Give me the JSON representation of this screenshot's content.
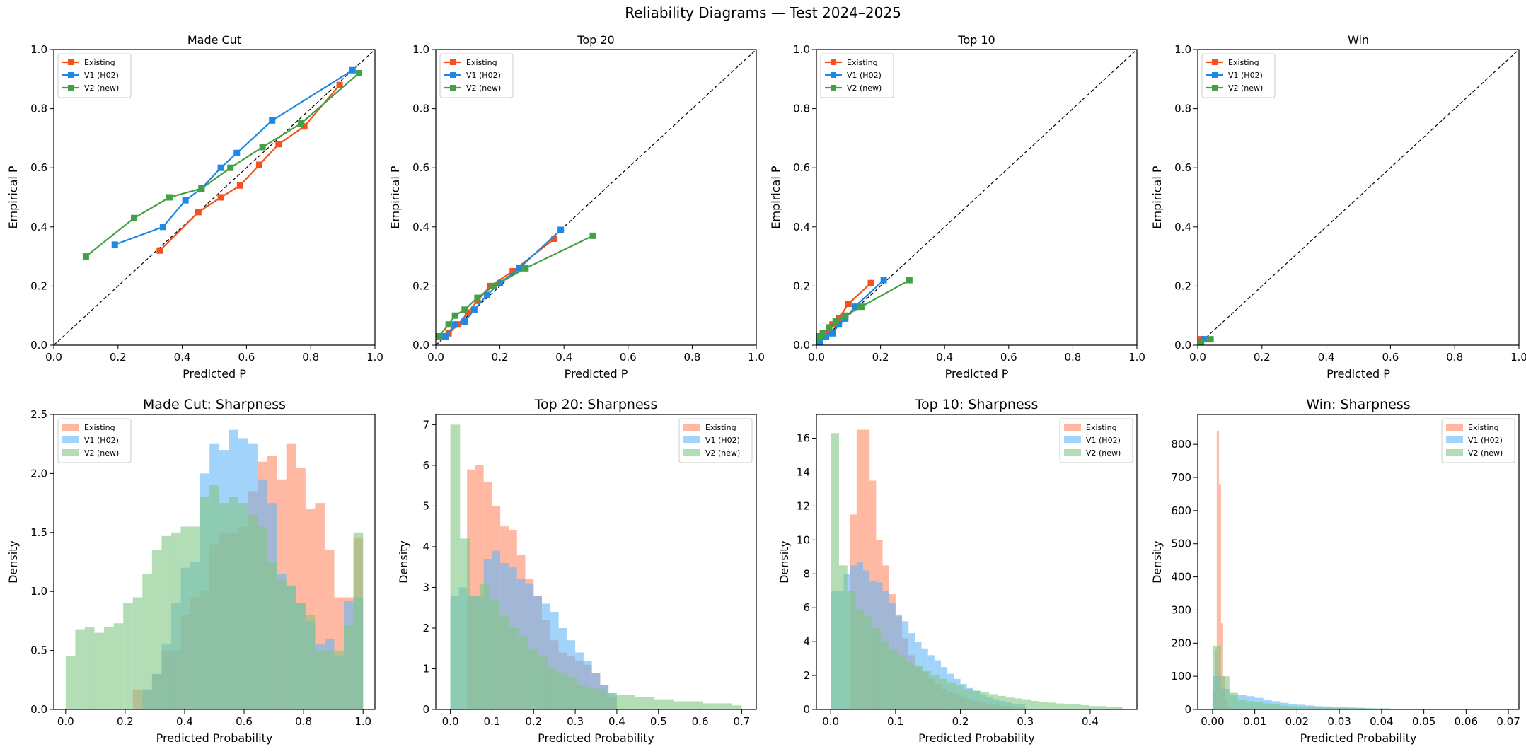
{
  "figure": {
    "title": "Reliability Diagrams — Test 2024–2025"
  },
  "colors": {
    "existing": "#f4511e",
    "v1": "#1e88e5",
    "v2": "#43a047",
    "hist_existing": "#ff8a65",
    "hist_v1": "#64b5f6",
    "hist_v2": "#81c784"
  },
  "chart_data": [
    {
      "type": "line",
      "title": "Made Cut",
      "xlabel": "Predicted P",
      "ylabel": "Empirical P",
      "xlim": [
        0,
        1
      ],
      "ylim": [
        0,
        1
      ],
      "xticks": [
        "0.0",
        "0.2",
        "0.4",
        "0.6",
        "0.8",
        "1.0"
      ],
      "yticks": [
        "0.0",
        "0.2",
        "0.4",
        "0.6",
        "0.8",
        "1.0"
      ],
      "diagonal": true,
      "legend": "top-left",
      "series": [
        {
          "name": "Existing",
          "color": "#f4511e",
          "points": [
            [
              0.33,
              0.32
            ],
            [
              0.45,
              0.45
            ],
            [
              0.52,
              0.5
            ],
            [
              0.58,
              0.54
            ],
            [
              0.64,
              0.61
            ],
            [
              0.7,
              0.68
            ],
            [
              0.78,
              0.74
            ],
            [
              0.89,
              0.88
            ]
          ]
        },
        {
          "name": "V1 (H02)",
          "color": "#1e88e5",
          "points": [
            [
              0.19,
              0.34
            ],
            [
              0.34,
              0.4
            ],
            [
              0.41,
              0.49
            ],
            [
              0.46,
              0.53
            ],
            [
              0.52,
              0.6
            ],
            [
              0.57,
              0.65
            ],
            [
              0.68,
              0.76
            ],
            [
              0.93,
              0.93
            ]
          ]
        },
        {
          "name": "V2 (new)",
          "color": "#43a047",
          "points": [
            [
              0.1,
              0.3
            ],
            [
              0.25,
              0.43
            ],
            [
              0.36,
              0.5
            ],
            [
              0.46,
              0.53
            ],
            [
              0.55,
              0.6
            ],
            [
              0.65,
              0.67
            ],
            [
              0.77,
              0.75
            ],
            [
              0.95,
              0.92
            ]
          ]
        }
      ]
    },
    {
      "type": "line",
      "title": "Top 20",
      "xlabel": "Predicted P",
      "ylabel": "Empirical P",
      "xlim": [
        0,
        1
      ],
      "ylim": [
        0,
        1
      ],
      "xticks": [
        "0.0",
        "0.2",
        "0.4",
        "0.6",
        "0.8",
        "1.0"
      ],
      "yticks": [
        "0.0",
        "0.2",
        "0.4",
        "0.6",
        "0.8",
        "1.0"
      ],
      "diagonal": true,
      "legend": "top-left",
      "series": [
        {
          "name": "Existing",
          "color": "#f4511e",
          "points": [
            [
              0.04,
              0.04
            ],
            [
              0.07,
              0.07
            ],
            [
              0.1,
              0.11
            ],
            [
              0.13,
              0.15
            ],
            [
              0.17,
              0.2
            ],
            [
              0.24,
              0.25
            ],
            [
              0.37,
              0.36
            ]
          ]
        },
        {
          "name": "V1 (H02)",
          "color": "#1e88e5",
          "points": [
            [
              0.03,
              0.03
            ],
            [
              0.06,
              0.07
            ],
            [
              0.09,
              0.08
            ],
            [
              0.12,
              0.12
            ],
            [
              0.16,
              0.17
            ],
            [
              0.2,
              0.21
            ],
            [
              0.26,
              0.26
            ],
            [
              0.39,
              0.39
            ]
          ]
        },
        {
          "name": "V2 (new)",
          "color": "#43a047",
          "points": [
            [
              0.01,
              0.03
            ],
            [
              0.04,
              0.07
            ],
            [
              0.06,
              0.1
            ],
            [
              0.09,
              0.12
            ],
            [
              0.13,
              0.16
            ],
            [
              0.18,
              0.2
            ],
            [
              0.28,
              0.26
            ],
            [
              0.49,
              0.37
            ]
          ]
        }
      ]
    },
    {
      "type": "line",
      "title": "Top 10",
      "xlabel": "Predicted P",
      "ylabel": "Empirical P",
      "xlim": [
        0,
        1
      ],
      "ylim": [
        0,
        1
      ],
      "xticks": [
        "0.0",
        "0.2",
        "0.4",
        "0.6",
        "0.8",
        "1.0"
      ],
      "yticks": [
        "0.0",
        "0.2",
        "0.4",
        "0.6",
        "0.8",
        "1.0"
      ],
      "diagonal": true,
      "legend": "top-left",
      "series": [
        {
          "name": "Existing",
          "color": "#f4511e",
          "points": [
            [
              0.01,
              0.02
            ],
            [
              0.03,
              0.04
            ],
            [
              0.05,
              0.07
            ],
            [
              0.07,
              0.09
            ],
            [
              0.1,
              0.14
            ],
            [
              0.17,
              0.21
            ]
          ]
        },
        {
          "name": "V1 (H02)",
          "color": "#1e88e5",
          "points": [
            [
              0.01,
              0.01
            ],
            [
              0.03,
              0.03
            ],
            [
              0.05,
              0.04
            ],
            [
              0.07,
              0.07
            ],
            [
              0.09,
              0.09
            ],
            [
              0.12,
              0.13
            ],
            [
              0.21,
              0.22
            ]
          ]
        },
        {
          "name": "V2 (new)",
          "color": "#43a047",
          "points": [
            [
              0.0,
              0.02
            ],
            [
              0.01,
              0.03
            ],
            [
              0.02,
              0.04
            ],
            [
              0.04,
              0.06
            ],
            [
              0.06,
              0.08
            ],
            [
              0.09,
              0.1
            ],
            [
              0.14,
              0.13
            ],
            [
              0.29,
              0.22
            ]
          ]
        }
      ]
    },
    {
      "type": "line",
      "title": "Win",
      "xlabel": "Predicted P",
      "ylabel": "Empirical P",
      "xlim": [
        0,
        1
      ],
      "ylim": [
        0,
        1
      ],
      "xticks": [
        "0.0",
        "0.2",
        "0.4",
        "0.6",
        "0.8",
        "1.0"
      ],
      "yticks": [
        "0.0",
        "0.2",
        "0.4",
        "0.6",
        "0.8",
        "1.0"
      ],
      "diagonal": true,
      "legend": "top-left",
      "series": [
        {
          "name": "Existing",
          "color": "#f4511e",
          "points": [
            [
              0.0,
              0.0
            ],
            [
              0.0,
              0.01
            ],
            [
              0.01,
              0.02
            ]
          ]
        },
        {
          "name": "V1 (H02)",
          "color": "#1e88e5",
          "points": [
            [
              0.0,
              0.0
            ],
            [
              0.01,
              0.01
            ],
            [
              0.02,
              0.02
            ]
          ]
        },
        {
          "name": "V2 (new)",
          "color": "#43a047",
          "points": [
            [
              0.0,
              0.0
            ],
            [
              0.01,
              0.01
            ],
            [
              0.04,
              0.02
            ]
          ]
        }
      ]
    },
    {
      "type": "histogram",
      "title": "Made Cut: Sharpness",
      "xlabel": "Predicted Probability",
      "ylabel": "Density",
      "xlim": [
        -0.04,
        1.04
      ],
      "ylim": [
        0,
        2.5
      ],
      "xticks": [
        "0.0",
        "0.2",
        "0.4",
        "0.6",
        "0.8",
        "1.0"
      ],
      "yticks": [
        "0.0",
        "0.5",
        "1.0",
        "1.5",
        "2.0",
        "2.5"
      ],
      "legend": "top-left",
      "series": [
        {
          "name": "Existing",
          "color": "#ff8a65",
          "range": [
            0.0,
            1.0
          ],
          "values": [
            0,
            0,
            0,
            0,
            0,
            0,
            0,
            0.17,
            0.17,
            0.3,
            0.5,
            0.5,
            0.8,
            0.95,
            1.0,
            1.4,
            1.5,
            1.5,
            1.55,
            1.85,
            2.1,
            2.15,
            1.95,
            2.25,
            2.05,
            1.7,
            1.75,
            1.35,
            0.95,
            0.95,
            1.45
          ]
        },
        {
          "name": "V1 (H02)",
          "color": "#64b5f6",
          "range": [
            0.0,
            1.0
          ],
          "values": [
            0,
            0,
            0,
            0,
            0,
            0,
            0,
            0,
            0.17,
            0.3,
            0.55,
            0.9,
            1.2,
            1.25,
            2.0,
            2.25,
            2.2,
            2.37,
            2.3,
            2.25,
            1.95,
            1.75,
            1.15,
            1.05,
            0.9,
            0.75,
            0.55,
            0.6,
            0.45,
            0.92,
            0.95
          ]
        },
        {
          "name": "V2 (new)",
          "color": "#81c784",
          "range": [
            0.0,
            1.0
          ],
          "values": [
            0.45,
            0.68,
            0.7,
            0.65,
            0.7,
            0.73,
            0.9,
            0.95,
            1.15,
            1.35,
            1.47,
            1.5,
            1.55,
            1.55,
            1.8,
            1.9,
            1.75,
            1.8,
            1.75,
            1.65,
            1.55,
            1.25,
            1.1,
            1.05,
            0.9,
            0.8,
            0.5,
            0.5,
            0.5,
            0.72,
            1.5
          ]
        }
      ]
    },
    {
      "type": "histogram",
      "title": "Top 20: Sharpness",
      "xlabel": "Predicted Probability",
      "ylabel": "Density",
      "xlim": [
        -0.035,
        0.735
      ],
      "ylim": [
        0,
        7.25
      ],
      "xticks": [
        "0.0",
        "0.1",
        "0.2",
        "0.3",
        "0.4",
        "0.5",
        "0.6",
        "0.7"
      ],
      "yticks": [
        "0",
        "1",
        "2",
        "3",
        "4",
        "5",
        "6",
        "7"
      ],
      "legend": "top-right",
      "series": [
        {
          "name": "Existing",
          "color": "#ff8a65",
          "range": [
            0.0,
            0.4
          ],
          "values": [
            0,
            0,
            5.9,
            6.0,
            5.6,
            5.0,
            4.5,
            4.4,
            3.8,
            3.2,
            2.8,
            2.2,
            1.7,
            1.4,
            1.3,
            1.2,
            1.1,
            0.9,
            0.6,
            0.3
          ]
        },
        {
          "name": "V1 (H02)",
          "color": "#64b5f6",
          "range": [
            0.0,
            0.4
          ],
          "values": [
            2.8,
            3.0,
            2.8,
            2.8,
            3.7,
            3.9,
            3.6,
            3.5,
            3.2,
            3.1,
            2.8,
            2.6,
            2.4,
            2.0,
            1.7,
            1.4,
            1.2,
            0.9,
            0.6,
            0.4
          ]
        },
        {
          "name": "V2 (new)",
          "color": "#81c784",
          "range": [
            0.0,
            0.7
          ],
          "values": [
            7.0,
            4.2,
            2.8,
            3.1,
            2.7,
            2.3,
            2.0,
            1.8,
            1.5,
            1.3,
            1.0,
            0.9,
            0.8,
            0.6,
            0.55,
            0.5,
            0.4,
            0.35,
            0.35,
            0.3,
            0.3,
            0.25,
            0.25,
            0.2,
            0.2,
            0.2,
            0.15,
            0.15,
            0.15,
            0.1
          ]
        }
      ]
    },
    {
      "type": "histogram",
      "title": "Top 10: Sharpness",
      "xlabel": "Predicted Probability",
      "ylabel": "Density",
      "xlim": [
        -0.022,
        0.472
      ],
      "ylim": [
        0,
        17.4
      ],
      "xticks": [
        "0.0",
        "0.1",
        "0.2",
        "0.3",
        "0.4"
      ],
      "yticks": [
        "0",
        "2",
        "4",
        "6",
        "8",
        "10",
        "12",
        "14",
        "16"
      ],
      "legend": "top-right",
      "series": [
        {
          "name": "Existing",
          "color": "#ff8a65",
          "range": [
            0.0,
            0.3
          ],
          "values": [
            0,
            0,
            0,
            11.5,
            16.5,
            16.5,
            13.5,
            10.0,
            8.5,
            6.8,
            5.5,
            4.2,
            3.2,
            2.5,
            2.2,
            1.8,
            1.5,
            1.2,
            1.0,
            0.9,
            0.7,
            0.6,
            0.5,
            0.4,
            0.3,
            0.3,
            0.2,
            0.2,
            0.1,
            0.1
          ]
        },
        {
          "name": "V1 (H02)",
          "color": "#64b5f6",
          "range": [
            0.0,
            0.3
          ],
          "values": [
            7.0,
            7.0,
            8.0,
            8.5,
            8.7,
            8.2,
            7.6,
            7.5,
            7.0,
            6.3,
            5.6,
            5.2,
            4.5,
            4.0,
            3.6,
            3.2,
            2.9,
            2.5,
            2.1,
            1.8,
            1.5,
            1.3,
            1.1,
            0.9,
            0.7,
            0.6,
            0.5,
            0.4,
            0.3,
            0.3
          ]
        },
        {
          "name": "V2 (new)",
          "color": "#81c784",
          "range": [
            0.0,
            0.45
          ],
          "values": [
            16.3,
            8.5,
            7.0,
            5.9,
            5.5,
            4.8,
            4.0,
            3.5,
            3.2,
            2.8,
            2.6,
            2.3,
            2.0,
            1.8,
            1.6,
            1.4,
            1.2,
            1.1,
            1.0,
            0.9,
            0.8,
            0.7,
            0.65,
            0.6,
            0.5,
            0.45,
            0.4,
            0.35,
            0.3,
            0.3,
            0.25,
            0.2,
            0.2,
            0.15,
            0.15
          ]
        }
      ]
    },
    {
      "type": "histogram",
      "title": "Win: Sharpness",
      "xlabel": "Predicted Probability",
      "ylabel": "Density",
      "xlim": [
        -0.0035,
        0.0725
      ],
      "ylim": [
        0,
        890
      ],
      "xticks": [
        "0.00",
        "0.01",
        "0.02",
        "0.03",
        "0.04",
        "0.05",
        "0.06",
        "0.07"
      ],
      "yticks": [
        "0",
        "100",
        "200",
        "300",
        "400",
        "500",
        "600",
        "700",
        "800"
      ],
      "legend": "top-right",
      "series": [
        {
          "name": "Existing",
          "color": "#ff8a65",
          "range": [
            0.0,
            0.006
          ],
          "values": [
            50,
            180,
            840,
            680,
            260,
            100,
            30,
            10,
            5,
            2,
            1,
            1
          ]
        },
        {
          "name": "V1 (H02)",
          "color": "#64b5f6",
          "range": [
            0.0,
            0.068
          ],
          "values": [
            100,
            62,
            45,
            43,
            40,
            35,
            30,
            25,
            20,
            17,
            14,
            12,
            10,
            9,
            8,
            7,
            6,
            5,
            4,
            3,
            3,
            2,
            2,
            2,
            1,
            1,
            1,
            1,
            1,
            1,
            1,
            1,
            1,
            1
          ]
        },
        {
          "name": "V2 (new)",
          "color": "#81c784",
          "range": [
            0.0,
            0.066
          ],
          "values": [
            190,
            100,
            50,
            30,
            25,
            22,
            18,
            15,
            12,
            10,
            9,
            8,
            7,
            6,
            5,
            5,
            4,
            4,
            3,
            3,
            3,
            2,
            2,
            2,
            2,
            1,
            1,
            1,
            1,
            1,
            1,
            1,
            1
          ]
        }
      ]
    }
  ]
}
